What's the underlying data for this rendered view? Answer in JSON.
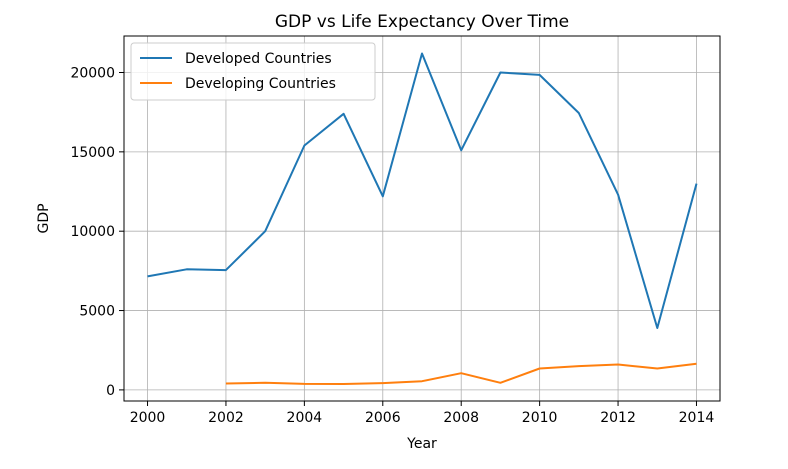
{
  "chart_data": {
    "type": "line",
    "title": "GDP vs Life Expectancy Over Time",
    "xlabel": "Year",
    "ylabel": "GDP",
    "xlim": [
      1999.4,
      2014.6
    ],
    "ylim": [
      -700,
      22300
    ],
    "xticks": [
      2000,
      2002,
      2004,
      2006,
      2008,
      2010,
      2012,
      2014
    ],
    "yticks": [
      0,
      5000,
      10000,
      15000,
      20000
    ],
    "grid": true,
    "legend_position": "top-left",
    "series": [
      {
        "name": "Developed Countries",
        "color": "#1f77b4",
        "x": [
          2000,
          2001,
          2002,
          2003,
          2004,
          2005,
          2006,
          2007,
          2008,
          2009,
          2010,
          2011,
          2012,
          2013,
          2014
        ],
        "y": [
          7150,
          7600,
          7550,
          10000,
          15400,
          17400,
          12200,
          21200,
          15100,
          20000,
          19850,
          17450,
          12300,
          3900,
          13000
        ]
      },
      {
        "name": "Developing Countries",
        "color": "#ff7f0e",
        "x": [
          2002,
          2003,
          2004,
          2005,
          2006,
          2007,
          2008,
          2009,
          2010,
          2011,
          2012,
          2013,
          2014
        ],
        "y": [
          400,
          450,
          380,
          370,
          430,
          550,
          1050,
          450,
          1350,
          1500,
          1600,
          1350,
          1650
        ]
      }
    ]
  }
}
